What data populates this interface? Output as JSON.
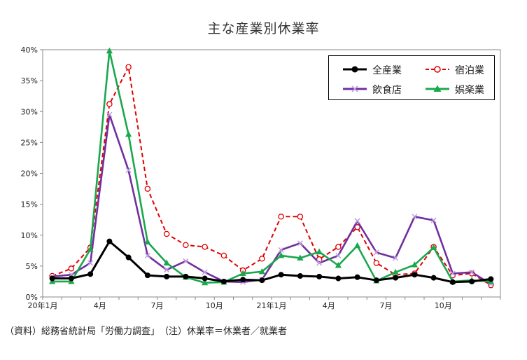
{
  "chart_data": {
    "type": "line",
    "title": "主な産業別休業率",
    "xlabel": "",
    "ylabel": "",
    "ylim": [
      0,
      40
    ],
    "yticks": [
      "0%",
      "5%",
      "10%",
      "15%",
      "20%",
      "25%",
      "30%",
      "35%",
      "40%"
    ],
    "xtick_labels": [
      {
        "index": 0,
        "label": "20年1月"
      },
      {
        "index": 3,
        "label": "4月"
      },
      {
        "index": 6,
        "label": "7月"
      },
      {
        "index": 9,
        "label": "10月"
      },
      {
        "index": 12,
        "label": "21年1月"
      },
      {
        "index": 15,
        "label": "4月"
      },
      {
        "index": 18,
        "label": "7月"
      },
      {
        "index": 21,
        "label": "10月"
      }
    ],
    "legend_position": "top-right",
    "grid": false,
    "series": [
      {
        "name": "全産業",
        "color": "#000000",
        "style": "solid",
        "marker": "dot",
        "values": [
          3.0,
          3.0,
          3.7,
          9.0,
          6.4,
          3.5,
          3.3,
          3.3,
          3.0,
          2.5,
          2.8,
          2.7,
          3.6,
          3.4,
          3.3,
          3.0,
          3.2,
          2.7,
          3.1,
          3.6,
          3.1,
          2.4,
          2.5,
          2.9
        ]
      },
      {
        "name": "宿泊業",
        "color": "#e00000",
        "style": "dashed",
        "marker": "open-circle",
        "values": [
          3.4,
          4.6,
          8.0,
          31.2,
          37.2,
          17.5,
          10.2,
          8.4,
          8.1,
          6.7,
          4.3,
          6.2,
          13.0,
          13.0,
          6.1,
          8.1,
          11.3,
          5.5,
          3.6,
          3.8,
          8.1,
          3.5,
          3.8,
          1.9
        ]
      },
      {
        "name": "飲食店",
        "color": "#7030a0",
        "style": "solid",
        "marker": "x",
        "values": [
          3.3,
          3.6,
          5.5,
          29.5,
          20.5,
          6.7,
          4.4,
          5.8,
          4.0,
          2.5,
          2.4,
          2.8,
          7.6,
          8.7,
          5.5,
          6.7,
          12.3,
          7.2,
          6.3,
          13.0,
          12.4,
          3.8,
          4.0,
          2.1
        ]
      },
      {
        "name": "娯楽業",
        "color": "#1aa84e",
        "style": "solid",
        "marker": "triangle",
        "values": [
          2.5,
          2.5,
          7.7,
          39.8,
          26.3,
          8.9,
          5.5,
          3.2,
          2.3,
          2.4,
          3.8,
          4.1,
          6.7,
          6.3,
          7.3,
          5.1,
          8.3,
          2.6,
          4.0,
          5.2,
          8.0,
          2.5,
          2.7,
          2.5
        ]
      }
    ]
  },
  "footnote": "（資料）総務省統計局「労働力調査」　（注）休業率＝休業者／就業者"
}
